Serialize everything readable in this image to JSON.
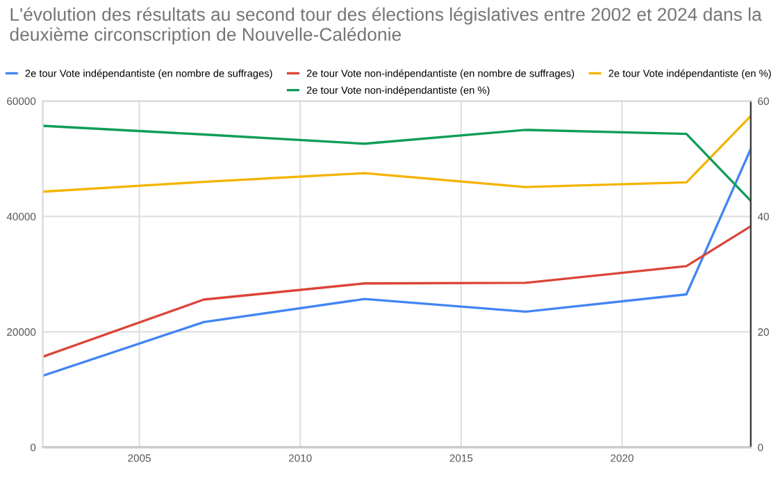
{
  "chart_data": {
    "type": "line",
    "title": "L'évolution des résultats au second tour des élections législatives entre 2002 et 2024 dans la deuxième circonscription de Nouvelle-Calédonie",
    "x": [
      2002,
      2007,
      2012,
      2017,
      2022,
      2024
    ],
    "series": [
      {
        "name": "2e tour Vote indépendantiste (en nombre de suffrages)",
        "color": "#4285f4",
        "values": [
          12400,
          21700,
          25700,
          23500,
          26500,
          51700
        ]
      },
      {
        "name": "2e tour Vote non-indépendantiste (en nombre de suffrages)",
        "color": "#db4437",
        "values": [
          15700,
          25600,
          28400,
          28500,
          31400,
          38300
        ]
      },
      {
        "name": "2e tour Vote indépendantiste (en %)",
        "color": "#f4b400",
        "axis": "y2",
        "values": [
          44.3,
          46.0,
          47.5,
          45.1,
          45.9,
          57.4
        ]
      },
      {
        "name": "2e tour Vote non-indépendantiste (en %)",
        "color": "#0f9d58",
        "axis": "y2",
        "values": [
          55.7,
          54.2,
          52.6,
          55.0,
          54.3,
          42.7
        ]
      }
    ],
    "xlim": [
      2002,
      2024
    ],
    "xticks": [
      2005,
      2010,
      2015,
      2020
    ],
    "ylim": [
      0,
      60000
    ],
    "yticks": [
      0,
      20000,
      40000,
      60000
    ],
    "y2lim": [
      0,
      60
    ],
    "y2ticks": [
      0,
      20,
      40,
      60
    ],
    "grid": true,
    "legend": "top",
    "marker": "none",
    "line_style": "solid"
  }
}
